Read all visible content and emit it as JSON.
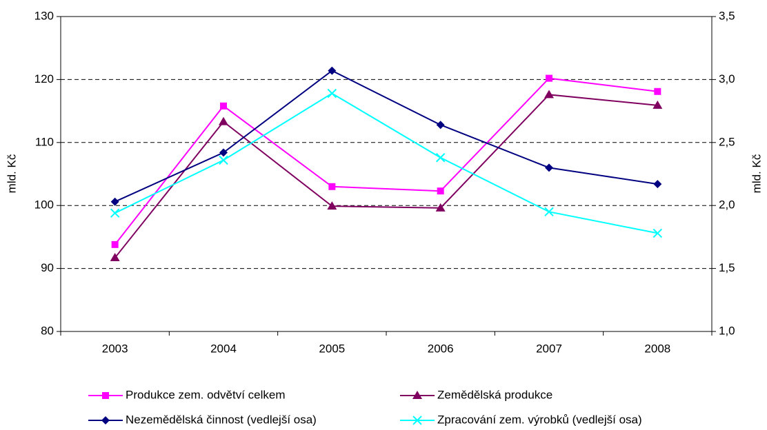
{
  "chart_data": {
    "type": "line",
    "categories": [
      "2003",
      "2004",
      "2005",
      "2006",
      "2007",
      "2008"
    ],
    "ylabel": "mld. Kč",
    "y2label": "mld. Kč",
    "ylim": [
      80,
      130
    ],
    "yticks": [
      80,
      90,
      100,
      110,
      120,
      130
    ],
    "y2lim": [
      1.0,
      3.5
    ],
    "y2ticks": [
      {
        "value": 1.0,
        "label": "1,0"
      },
      {
        "value": 1.5,
        "label": "1,5"
      },
      {
        "value": 2.0,
        "label": "2,0"
      },
      {
        "value": 2.5,
        "label": "2,5"
      },
      {
        "value": 3.0,
        "label": "3,0"
      },
      {
        "value": 3.5,
        "label": "3,5"
      }
    ],
    "grid": true,
    "legend": "bottom",
    "series": [
      {
        "name": "Produkce zem. odvětví celkem",
        "color": "#ff00ff",
        "marker": "square",
        "values": [
          93.8,
          115.8,
          103.0,
          102.3,
          120.2,
          118.1
        ]
      },
      {
        "name": "Zemědělská produkce",
        "color": "#800060",
        "marker": "triangle",
        "values": [
          91.7,
          113.3,
          99.9,
          99.6,
          117.6,
          115.9
        ]
      },
      {
        "name": "Nezemědělská činnost (vedlejší osa)",
        "color": "#000080",
        "marker": "diamond",
        "axis": "y2",
        "values": [
          2.03,
          2.42,
          3.07,
          2.64,
          2.3,
          2.17
        ]
      },
      {
        "name": "Zpracování zem. výrobků (vedlejší osa)",
        "color": "#00ffff",
        "marker": "x",
        "axis": "y2",
        "values": [
          1.94,
          2.36,
          2.89,
          2.38,
          1.95,
          1.78
        ]
      }
    ]
  }
}
